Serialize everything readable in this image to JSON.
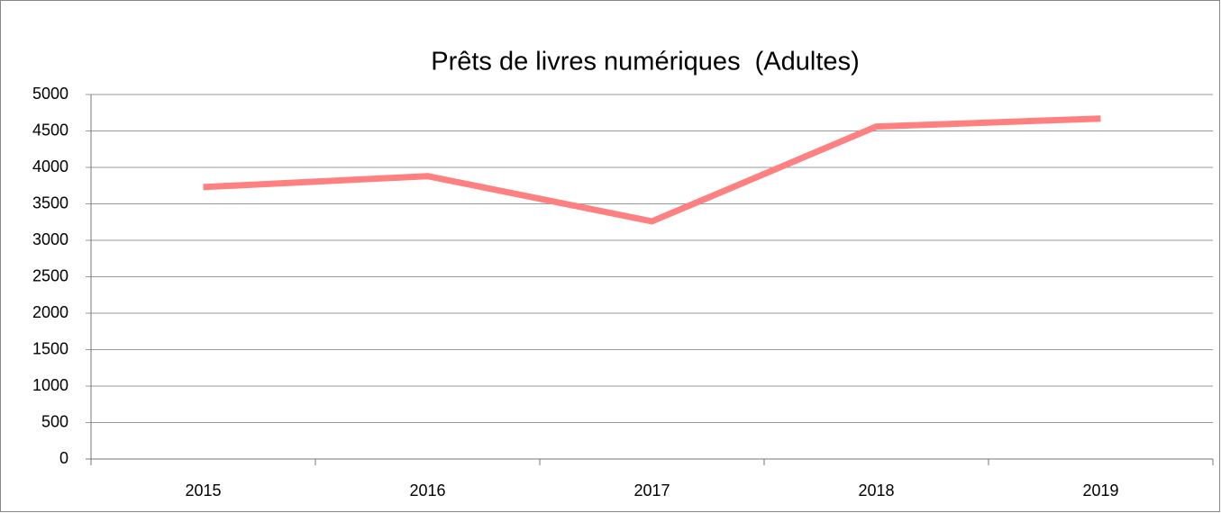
{
  "chart_data": {
    "type": "line",
    "title": "Prêts de livres numériques  (Adultes)",
    "categories": [
      "2015",
      "2016",
      "2017",
      "2018",
      "2019"
    ],
    "series": [
      {
        "name": "Adultes",
        "color": "#ff8080",
        "values": [
          3730,
          3880,
          3260,
          4560,
          4670
        ]
      }
    ],
    "ylim": [
      0,
      5000
    ],
    "yticks": [
      0,
      500,
      1000,
      1500,
      2000,
      2500,
      3000,
      3500,
      4000,
      4500,
      5000
    ],
    "grid": true
  }
}
